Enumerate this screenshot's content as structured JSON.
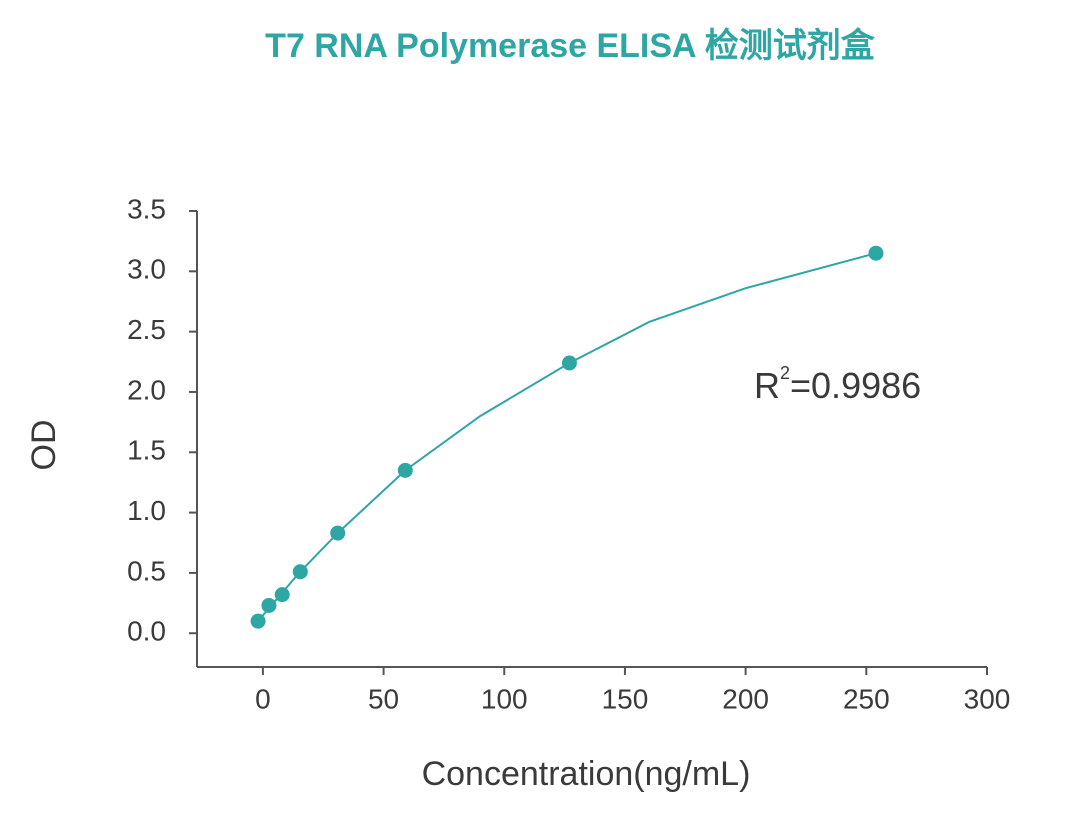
{
  "chart_data": {
    "type": "scatter",
    "title": "T7 RNA Polymerase ELISA  检测试剂盒",
    "x_label": "Concentration(ng/mL)",
    "y_label": "OD",
    "annotation": {
      "base": "R",
      "sup": "2",
      "rest": "=0.9986"
    },
    "color": "#2ea6a4",
    "x": [
      -2,
      2.5,
      8,
      15.5,
      31,
      59,
      127,
      254
    ],
    "values": [
      0.1,
      0.23,
      0.32,
      0.51,
      0.83,
      1.35,
      2.24,
      3.15
    ],
    "fit": {
      "x": [
        -2,
        15,
        31,
        59,
        90,
        127,
        160,
        200,
        254
      ],
      "y": [
        0.1,
        0.5,
        0.83,
        1.35,
        1.8,
        2.24,
        2.58,
        2.86,
        3.15
      ]
    },
    "xlim": [
      -27.3,
      300
    ],
    "ylim": [
      -0.28,
      3.5
    ],
    "xticks": [
      0,
      50,
      100,
      150,
      200,
      250,
      300
    ],
    "yticks": [
      {
        "value": 0,
        "label": "0.0"
      },
      0.5,
      {
        "value": 1,
        "label": "1.0"
      },
      1.5,
      {
        "value": 2,
        "label": "2.0"
      },
      2.5,
      {
        "value": 3,
        "label": "3.0"
      },
      3.5
    ]
  }
}
